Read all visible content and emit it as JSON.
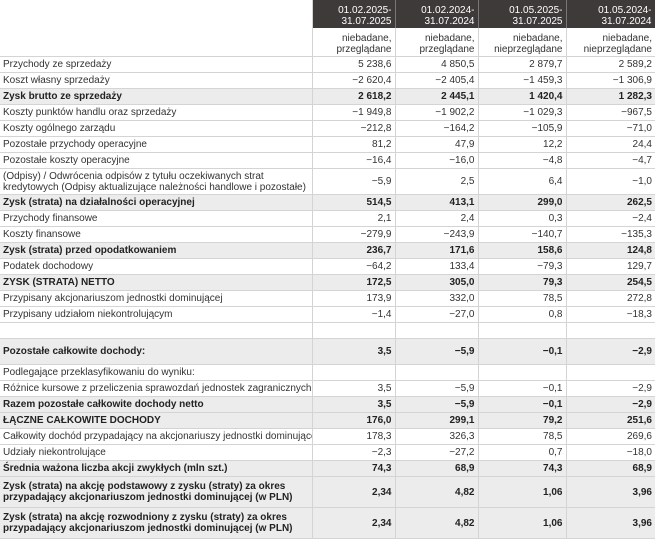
{
  "header": {
    "periods": [
      "01.02.2025-31.07.2025",
      "01.02.2024-31.07.2024",
      "01.05.2025-31.07.2025",
      "01.05.2024-31.07.2024"
    ],
    "status": [
      "niebadane, przeglądane",
      "niebadane, przeglądane",
      "niebadane, nieprzeglądane",
      "niebadane, nieprzeglądane"
    ]
  },
  "rows": [
    {
      "label": "Przychody ze sprzedaży",
      "v": [
        "5 238,6",
        "4 850,5",
        "2 879,7",
        "2 589,2"
      ],
      "bold": false,
      "type": "r"
    },
    {
      "label": "Koszt własny sprzedaży",
      "v": [
        "−2 620,4",
        "−2 405,4",
        "−1 459,3",
        "−1 306,9"
      ],
      "bold": false,
      "type": "r"
    },
    {
      "label": "Zysk brutto ze sprzedaży",
      "v": [
        "2 618,2",
        "2 445,1",
        "1 420,4",
        "1 282,3"
      ],
      "bold": true,
      "type": "r"
    },
    {
      "label": "Koszty punktów handlu oraz sprzedaży",
      "v": [
        "−1 949,8",
        "−1 902,2",
        "−1 029,3",
        "−967,5"
      ],
      "bold": false,
      "type": "r"
    },
    {
      "label": "Koszty ogólnego zarządu",
      "v": [
        "−212,8",
        "−164,2",
        "−105,9",
        "−71,0"
      ],
      "bold": false,
      "type": "r"
    },
    {
      "label": "Pozostałe przychody operacyjne",
      "v": [
        "81,2",
        "47,9",
        "12,2",
        "24,4"
      ],
      "bold": false,
      "type": "r"
    },
    {
      "label": "Pozostałe koszty operacyjne",
      "v": [
        "−16,4",
        "−16,0",
        "−4,8",
        "−4,7"
      ],
      "bold": false,
      "type": "r"
    },
    {
      "label": "(Odpisy) / Odwrócenia odpisów z tytułu oczekiwanych strat kredytowych (Odpisy aktualizujące należności handlowe i pozostałe)",
      "v": [
        "−5,9",
        "2,5",
        "6,4",
        "−1,0"
      ],
      "bold": false,
      "type": "r2"
    },
    {
      "label": "Zysk (strata) na działalności operacyjnej",
      "v": [
        "514,5",
        "413,1",
        "299,0",
        "262,5"
      ],
      "bold": true,
      "type": "r"
    },
    {
      "label": "Przychody finansowe",
      "v": [
        "2,1",
        "2,4",
        "0,3",
        "−2,4"
      ],
      "bold": false,
      "type": "r"
    },
    {
      "label": "Koszty finansowe",
      "v": [
        "−279,9",
        "−243,9",
        "−140,7",
        "−135,3"
      ],
      "bold": false,
      "type": "r"
    },
    {
      "label": "Zysk (strata) przed opodatkowaniem",
      "v": [
        "236,7",
        "171,6",
        "158,6",
        "124,8"
      ],
      "bold": true,
      "type": "r"
    },
    {
      "label": "Podatek dochodowy",
      "v": [
        "−64,2",
        "133,4",
        "−79,3",
        "129,7"
      ],
      "bold": false,
      "type": "r"
    },
    {
      "label": "ZYSK (STRATA) NETTO",
      "v": [
        "172,5",
        "305,0",
        "79,3",
        "254,5"
      ],
      "bold": true,
      "type": "r"
    },
    {
      "label": "Przypisany akcjonariuszom jednostki dominującej",
      "v": [
        "173,9",
        "332,0",
        "78,5",
        "272,8"
      ],
      "bold": false,
      "type": "r"
    },
    {
      "label": "Przypisany udziałom niekontrolującym",
      "v": [
        "−1,4",
        "−27,0",
        "0,8",
        "−18,3"
      ],
      "bold": false,
      "type": "r"
    },
    {
      "label": "",
      "v": [
        "",
        "",
        "",
        ""
      ],
      "bold": false,
      "type": "spacer"
    },
    {
      "label": "Pozostałe całkowite dochody:",
      "v": [
        "3,5",
        "−5,9",
        "−0,1",
        "−2,9"
      ],
      "bold": true,
      "type": "r2"
    },
    {
      "label": "Podlegające przeklasyfikowaniu do wyniku:",
      "v": [
        "",
        "",
        "",
        ""
      ],
      "bold": false,
      "type": "r"
    },
    {
      "label": "Różnice kursowe z przeliczenia sprawozdań jednostek zagranicznych",
      "v": [
        "3,5",
        "−5,9",
        "−0,1",
        "−2,9"
      ],
      "bold": false,
      "type": "r"
    },
    {
      "label": "Razem pozostałe całkowite dochody netto",
      "v": [
        "3,5",
        "−5,9",
        "−0,1",
        "−2,9"
      ],
      "bold": true,
      "type": "r"
    },
    {
      "label": "ŁĄCZNE CAŁKOWITE DOCHODY",
      "v": [
        "176,0",
        "299,1",
        "79,2",
        "251,6"
      ],
      "bold": true,
      "type": "r"
    },
    {
      "label": "Całkowity dochód przypadający na akcjonariuszy jednostki dominującej",
      "v": [
        "178,3",
        "326,3",
        "78,5",
        "269,6"
      ],
      "bold": false,
      "type": "r"
    },
    {
      "label": "Udziały niekontrolujące",
      "v": [
        "−2,3",
        "−27,2",
        "0,7",
        "−18,0"
      ],
      "bold": false,
      "type": "r"
    },
    {
      "label": "Średnia ważona liczba akcji zwykłych (mln szt.)",
      "v": [
        "74,3",
        "68,9",
        "74,3",
        "68,9"
      ],
      "bold": true,
      "type": "r"
    },
    {
      "label": "Zysk (strata) na akcję podstawowy z zysku (straty) za okres przypadający akcjonariuszom jednostki dominującej (w PLN)",
      "v": [
        "2,34",
        "4,82",
        "1,06",
        "3,96"
      ],
      "bold": true,
      "type": "r3"
    },
    {
      "label": "Zysk (strata) na akcję rozwodniony z zysku (straty) za okres przypadający akcjonariuszom jednostki dominującej (w PLN)",
      "v": [
        "2,34",
        "4,82",
        "1,06",
        "3,96"
      ],
      "bold": true,
      "type": "r3"
    }
  ]
}
